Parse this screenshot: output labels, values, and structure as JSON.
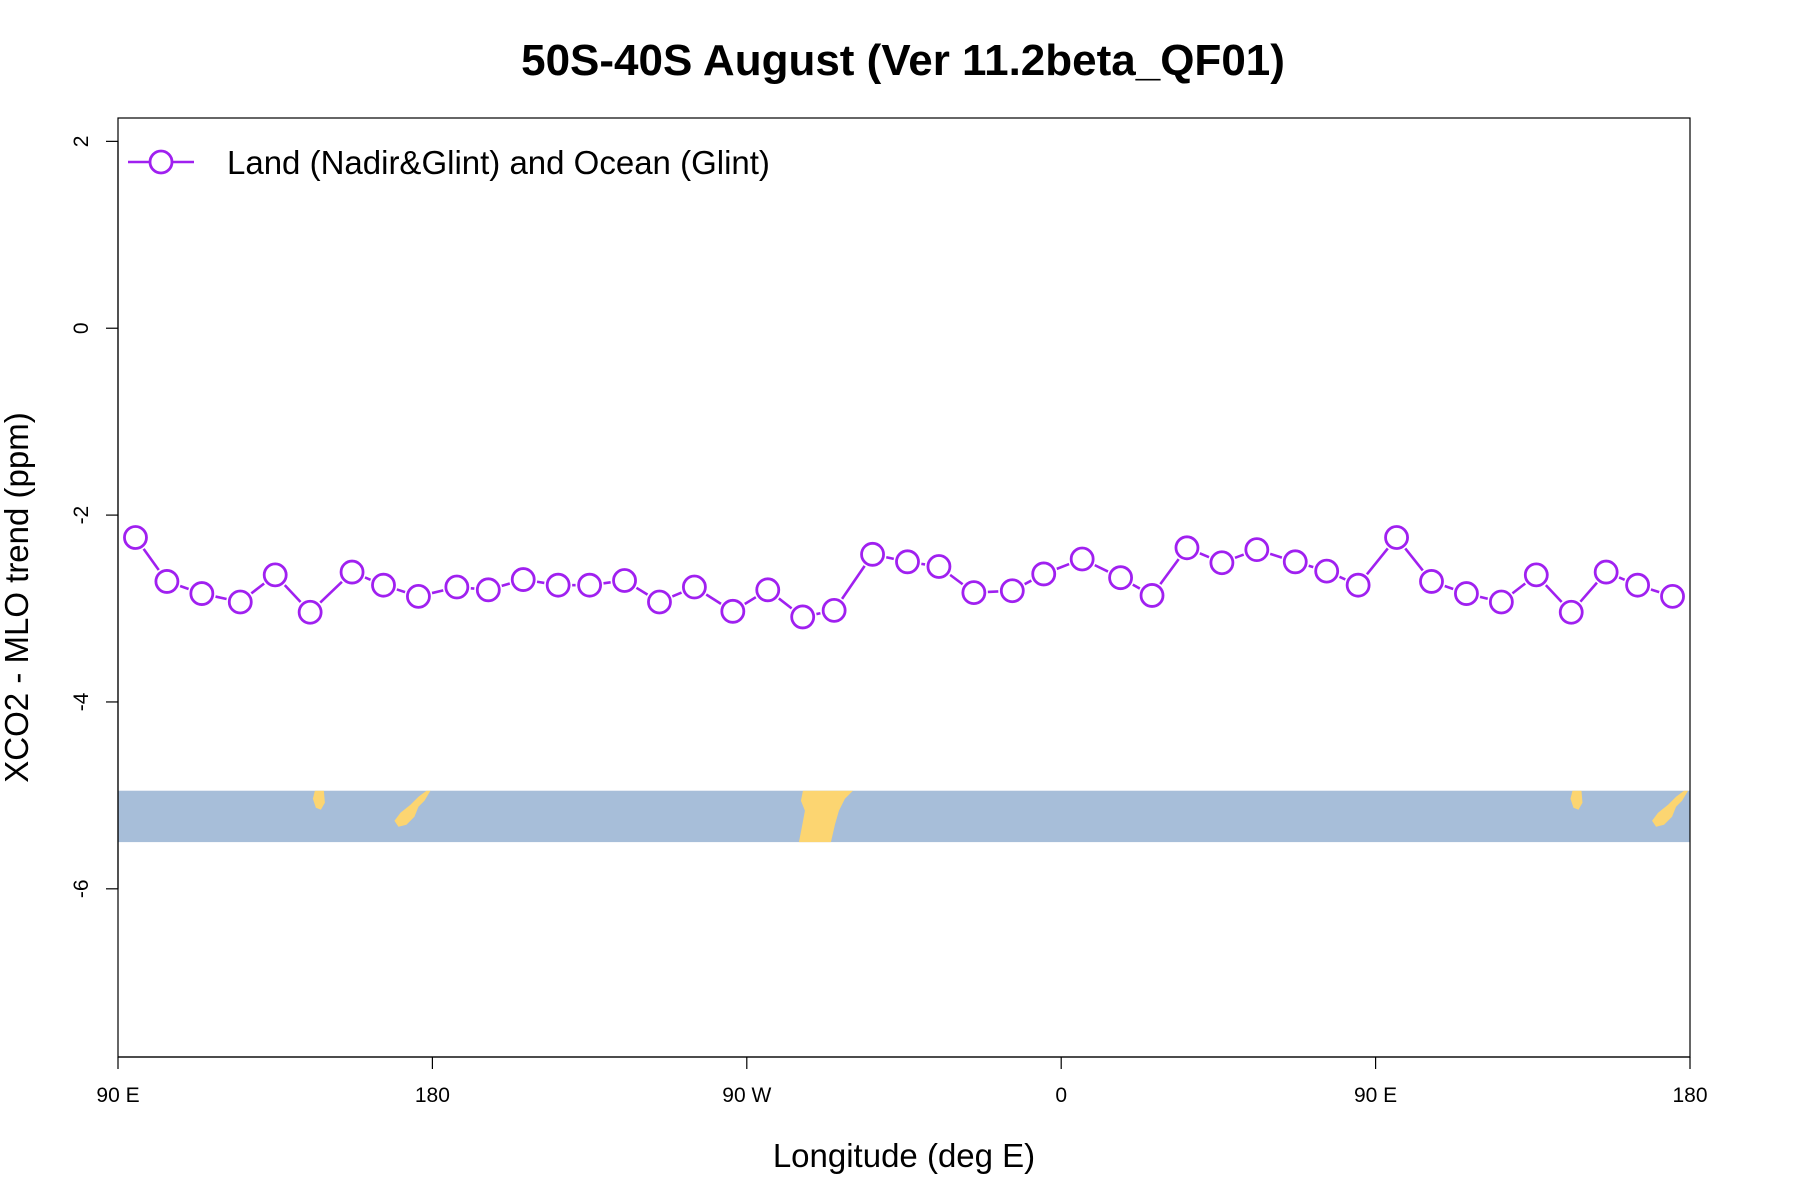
{
  "chart_data": {
    "type": "line",
    "title": "50S-40S August (Ver 11.2beta_QF01)",
    "xlabel": "Longitude (deg E)",
    "ylabel": "XCO2 - MLO trend (ppm)",
    "xlim": [
      90,
      540
    ],
    "ylim": [
      -7.8,
      2.25
    ],
    "x_ticks": [
      {
        "value": 90,
        "label": "90 E"
      },
      {
        "value": 180,
        "label": "180"
      },
      {
        "value": 270,
        "label": "90 W"
      },
      {
        "value": 360,
        "label": "0"
      },
      {
        "value": 450,
        "label": "90 E"
      },
      {
        "value": 540,
        "label": "180"
      }
    ],
    "y_ticks": [
      {
        "value": 2,
        "label": "2"
      },
      {
        "value": 0,
        "label": "0"
      },
      {
        "value": -2,
        "label": "-2"
      },
      {
        "value": -4,
        "label": "-4"
      },
      {
        "value": -6,
        "label": "-6"
      }
    ],
    "grid": false,
    "legend": {
      "position": "top-left",
      "entries": [
        "Land (Nadir&Glint) and Ocean (Glint)"
      ]
    },
    "series": [
      {
        "name": "Land (Nadir&Glint) and Ocean (Glint)",
        "color": "#a020f0",
        "marker": "open-circle",
        "x": [
          95,
          104,
          114,
          125,
          135,
          145,
          157,
          166,
          176,
          187,
          196,
          206,
          216,
          225,
          235,
          245,
          255,
          266,
          276,
          286,
          295,
          306,
          316,
          325,
          335,
          346,
          355,
          366,
          377,
          386,
          396,
          406,
          416,
          427,
          436,
          445,
          456,
          466,
          476,
          486,
          496,
          506,
          516,
          525,
          535
        ],
        "values": [
          -2.24,
          -2.71,
          -2.84,
          -2.93,
          -2.64,
          -3.04,
          -2.61,
          -2.75,
          -2.87,
          -2.77,
          -2.8,
          -2.69,
          -2.75,
          -2.75,
          -2.7,
          -2.93,
          -2.77,
          -3.03,
          -2.8,
          -3.09,
          -3.02,
          -2.42,
          -2.5,
          -2.55,
          -2.83,
          -2.81,
          -2.63,
          -2.47,
          -2.67,
          -2.86,
          -2.35,
          -2.51,
          -2.37,
          -2.5,
          -2.6,
          -2.75,
          -2.24,
          -2.71,
          -2.84,
          -2.93,
          -2.64,
          -3.04,
          -2.61,
          -2.75,
          -2.87
        ]
      }
    ],
    "map_strip": {
      "ocean_color": "#a7bed9",
      "land_color": "#fcd571",
      "y_range": [
        -5.5,
        -4.95
      ]
    }
  }
}
